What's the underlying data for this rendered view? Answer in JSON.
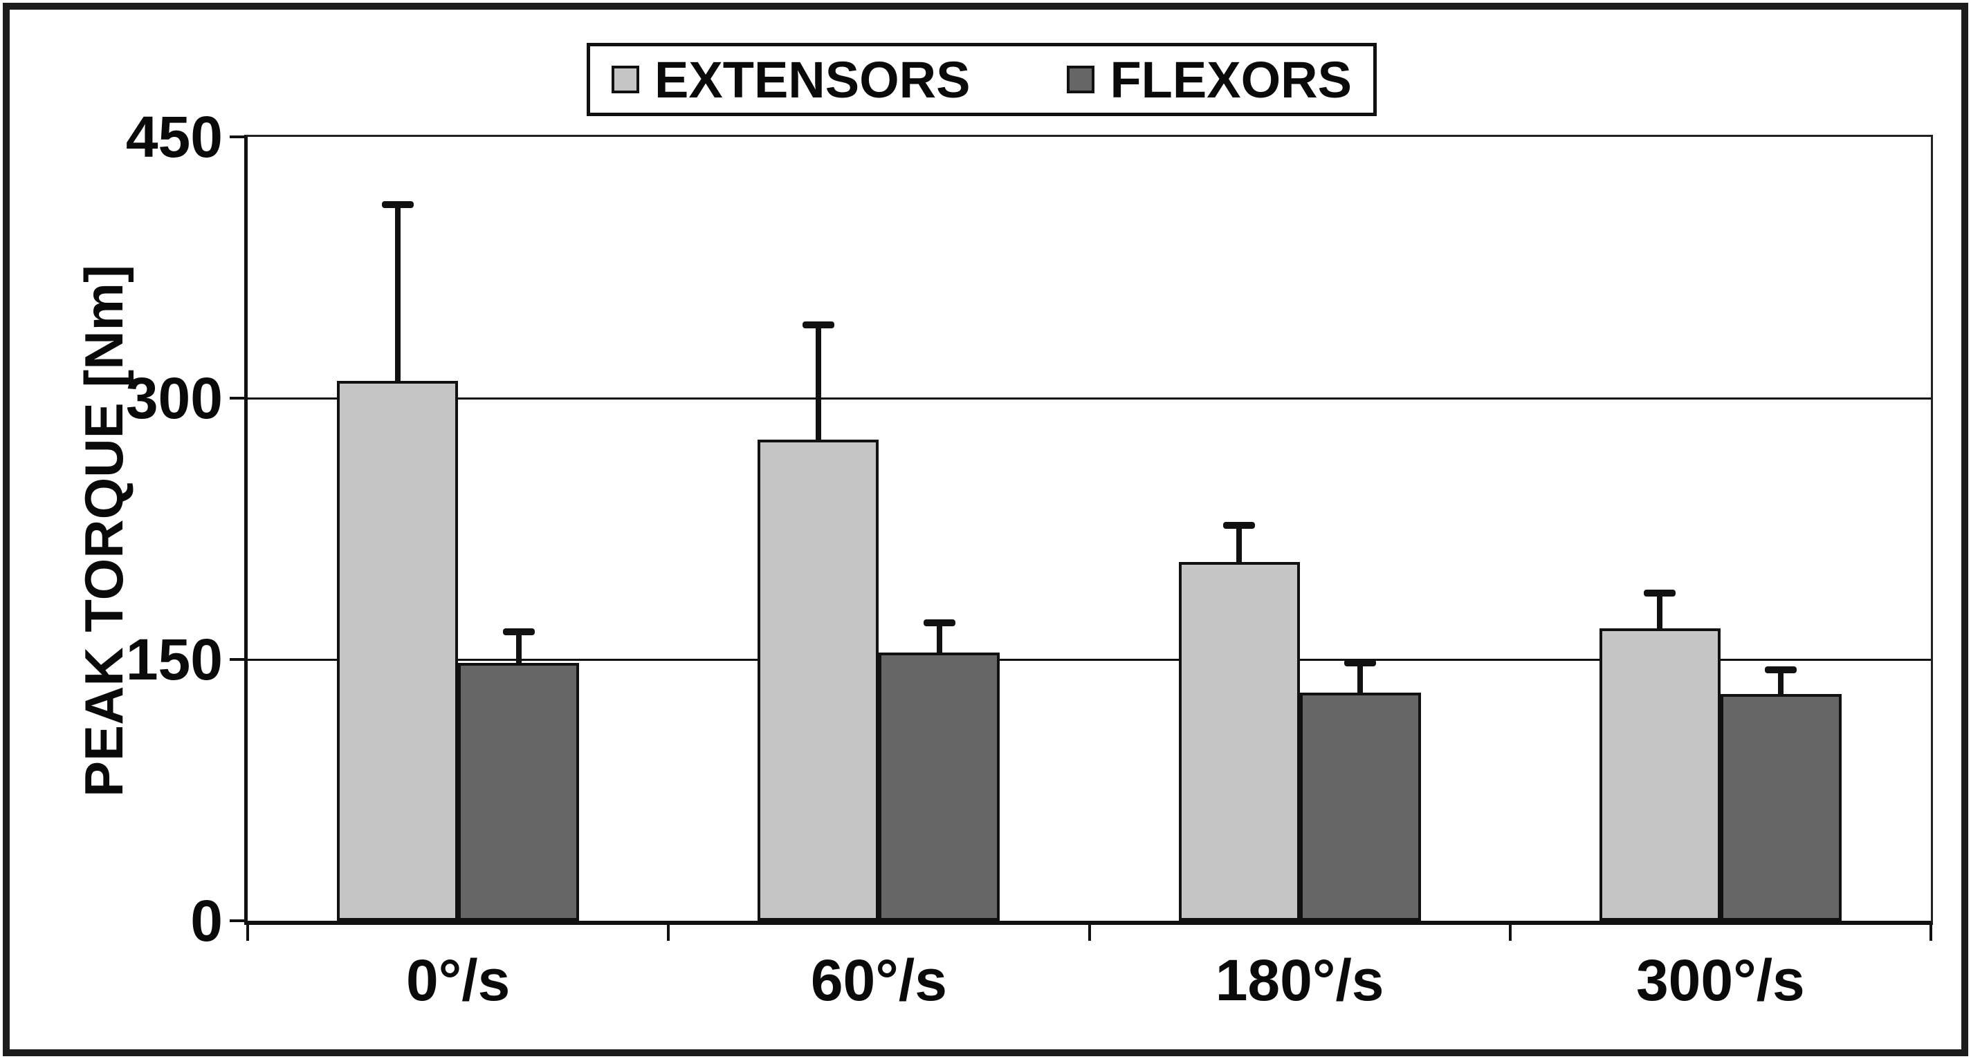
{
  "chart_data": {
    "type": "bar",
    "title": "",
    "categories": [
      "0°/s",
      "60°/s",
      "180°/s",
      "300°/s"
    ],
    "series": [
      {
        "name": "EXTENSORS",
        "color": "#c5c5c5",
        "values": [
          310,
          276,
          206,
          168
        ],
        "error_plus": [
          101,
          66,
          21,
          20
        ]
      },
      {
        "name": "FLEXORS",
        "color": "#666666",
        "values": [
          148,
          154,
          131,
          130
        ],
        "error_plus": [
          18,
          17,
          17,
          14
        ]
      }
    ],
    "xlabel": "",
    "ylabel": "PEAK TORQUE [Nm]",
    "ylim": [
      0,
      450
    ],
    "yticks": [
      0,
      150,
      300,
      450
    ],
    "grid": true,
    "legend_position": "top-center",
    "error_bars": "upper-only",
    "bar_outline_color": "#111111",
    "axis_color": "#111111",
    "plot_background": "#ffffff"
  }
}
